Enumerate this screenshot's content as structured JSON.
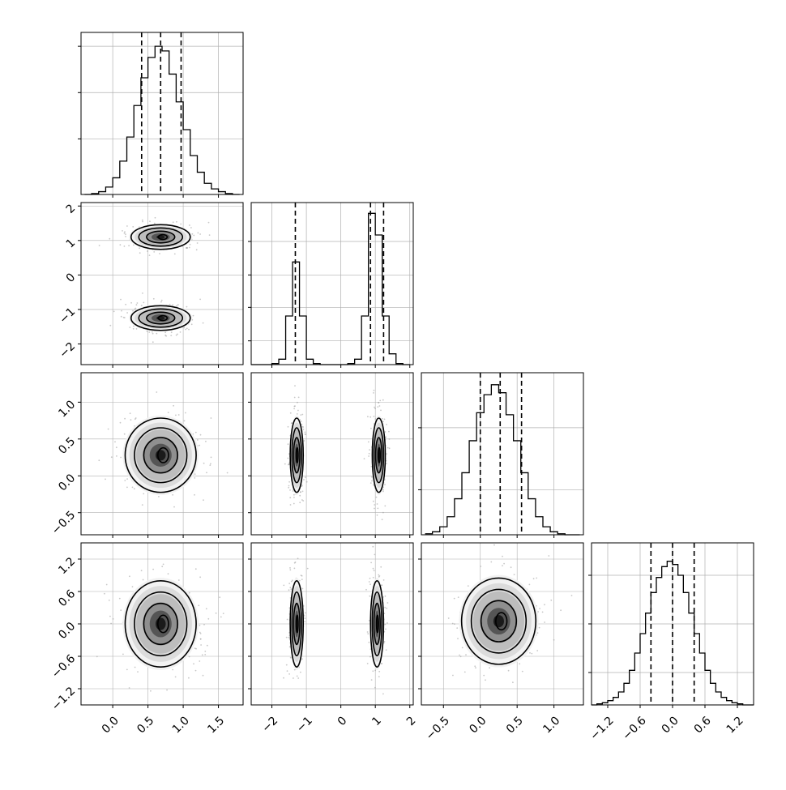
{
  "chart_data": {
    "type": "corner",
    "params": 4,
    "panels": {
      "diag": [
        {
          "index": 0,
          "type": "histogram",
          "bins": [
            -0.4,
            -0.3,
            -0.2,
            -0.1,
            0.0,
            0.1,
            0.2,
            0.3,
            0.4,
            0.5,
            0.6,
            0.7,
            0.8,
            0.9,
            1.0,
            1.1,
            1.2,
            1.3,
            1.4,
            1.5,
            1.6,
            1.7,
            1.8
          ],
          "counts": [
            0,
            1,
            3,
            8,
            18,
            36,
            62,
            96,
            126,
            148,
            160,
            155,
            130,
            100,
            70,
            42,
            24,
            12,
            6,
            3,
            1,
            0
          ],
          "quantiles": [
            0.41,
            0.68,
            0.97
          ],
          "xlim": [
            -0.45,
            1.85
          ],
          "ylim": [
            0,
            175
          ],
          "ygrid": [
            60,
            110,
            160
          ]
        },
        {
          "index": 1,
          "type": "histogram",
          "bins": [
            -2.6,
            -2.4,
            -2.2,
            -2.0,
            -1.8,
            -1.6,
            -1.4,
            -1.2,
            -1.0,
            -0.8,
            -0.6,
            -0.4,
            -0.2,
            0.0,
            0.2,
            0.4,
            0.6,
            0.8,
            1.0,
            1.2,
            1.4,
            1.6,
            1.8,
            2.0
          ],
          "counts": [
            0,
            0,
            0,
            1,
            5,
            45,
            95,
            45,
            5,
            1,
            0,
            0,
            0,
            0,
            1,
            5,
            45,
            140,
            120,
            45,
            10,
            1,
            0
          ],
          "quantiles": [
            -1.32,
            0.86,
            1.24
          ],
          "xlim": [
            -2.6,
            2.1
          ],
          "ylim": [
            0,
            150
          ],
          "ygrid": [
            22,
            53,
            83,
            114
          ]
        },
        {
          "index": 2,
          "type": "histogram",
          "bins": [
            -0.75,
            -0.65,
            -0.55,
            -0.45,
            -0.35,
            -0.25,
            -0.15,
            -0.05,
            0.05,
            0.15,
            0.25,
            0.35,
            0.45,
            0.55,
            0.65,
            0.75,
            0.85,
            0.95,
            1.05,
            1.15,
            1.25,
            1.35
          ],
          "counts": [
            1,
            3,
            8,
            18,
            36,
            62,
            94,
            122,
            140,
            150,
            142,
            120,
            94,
            62,
            36,
            18,
            8,
            3,
            1,
            0,
            0
          ],
          "quantiles": [
            0.0,
            0.27,
            0.56
          ],
          "xlim": [
            -0.8,
            1.4
          ],
          "ylim": [
            0,
            162
          ],
          "ygrid": [
            45,
            107
          ]
        },
        {
          "index": 3,
          "type": "histogram",
          "bins": [
            -1.5,
            -1.4,
            -1.3,
            -1.2,
            -1.1,
            -1.0,
            -0.9,
            -0.8,
            -0.7,
            -0.6,
            -0.5,
            -0.4,
            -0.3,
            -0.2,
            -0.1,
            0.0,
            0.1,
            0.2,
            0.3,
            0.4,
            0.5,
            0.6,
            0.7,
            0.8,
            0.9,
            1.0,
            1.1,
            1.2,
            1.3,
            1.4,
            1.5
          ],
          "counts": [
            0,
            1,
            2,
            4,
            7,
            12,
            20,
            32,
            48,
            66,
            85,
            104,
            118,
            128,
            133,
            130,
            120,
            104,
            85,
            66,
            48,
            32,
            20,
            12,
            7,
            4,
            2,
            1,
            0,
            0
          ],
          "quantiles": [
            -0.4,
            0.0,
            0.4
          ],
          "xlim": [
            -1.5,
            1.5
          ],
          "ylim": [
            0,
            150
          ],
          "ygrid": [
            30,
            75,
            120
          ]
        }
      ],
      "offdiag": [
        {
          "row": 1,
          "col": 0,
          "blobs": [
            {
              "cx": 0.68,
              "cy": 1.1,
              "sx": 0.2,
              "sy": 0.17
            },
            {
              "cx": 0.68,
              "cy": -1.25,
              "sx": 0.2,
              "sy": 0.17
            }
          ]
        },
        {
          "row": 2,
          "col": 0,
          "blobs": [
            {
              "cx": 0.68,
              "cy": 0.28,
              "sx": 0.24,
              "sy": 0.24
            }
          ]
        },
        {
          "row": 2,
          "col": 1,
          "blobs": [
            {
              "cx": -1.28,
              "cy": 0.28,
              "sx": 0.09,
              "sy": 0.24
            },
            {
              "cx": 1.1,
              "cy": 0.28,
              "sx": 0.09,
              "sy": 0.24
            }
          ]
        },
        {
          "row": 3,
          "col": 0,
          "blobs": [
            {
              "cx": 0.68,
              "cy": 0.0,
              "sx": 0.24,
              "sy": 0.38
            }
          ]
        },
        {
          "row": 3,
          "col": 1,
          "blobs": [
            {
              "cx": -1.28,
              "cy": 0.0,
              "sx": 0.09,
              "sy": 0.38
            },
            {
              "cx": 1.05,
              "cy": 0.0,
              "sx": 0.09,
              "sy": 0.38
            }
          ]
        },
        {
          "row": 3,
          "col": 2,
          "blobs": [
            {
              "cx": 0.25,
              "cy": 0.05,
              "sx": 0.24,
              "sy": 0.38
            }
          ]
        }
      ]
    },
    "axes": {
      "x": [
        {
          "ticks": [
            0.0,
            0.5,
            1.0,
            1.5
          ],
          "labels": [
            "0.0",
            "0.5",
            "1.0",
            "1.5"
          ],
          "lim": [
            -0.45,
            1.85
          ]
        },
        {
          "ticks": [
            -2,
            -1,
            0,
            1,
            2
          ],
          "labels": [
            "−2",
            "−1",
            "0",
            "1",
            "2"
          ],
          "lim": [
            -2.6,
            2.1
          ]
        },
        {
          "ticks": [
            -0.5,
            0.0,
            0.5,
            1.0
          ],
          "labels": [
            "−0.5",
            "0.0",
            "0.5",
            "1.0"
          ],
          "lim": [
            -0.8,
            1.4
          ]
        },
        {
          "ticks": [
            -1.2,
            -0.6,
            0.0,
            0.6,
            1.2
          ],
          "labels": [
            "−1.2",
            "−0.6",
            "0.0",
            "0.6",
            "1.2"
          ],
          "lim": [
            -1.5,
            1.5
          ]
        }
      ],
      "y": [
        {
          "ticks": [],
          "labels": [],
          "lim": [
            0,
            1
          ]
        },
        {
          "ticks": [
            2,
            1,
            0,
            -1,
            -2
          ],
          "labels": [
            "2",
            "1",
            "0",
            "−1",
            "−2"
          ],
          "lim": [
            -2.6,
            2.1
          ]
        },
        {
          "ticks": [
            1.0,
            0.5,
            0.0,
            -0.5
          ],
          "labels": [
            "1.0",
            "0.5",
            "0.0",
            "−0.5"
          ],
          "lim": [
            -0.8,
            1.4
          ]
        },
        {
          "ticks": [
            1.2,
            0.6,
            0.0,
            -0.6,
            -1.2
          ],
          "labels": [
            "1.2",
            "0.6",
            "0.0",
            "−0.6",
            "−1.2"
          ],
          "lim": [
            -1.5,
            1.5
          ]
        }
      ]
    },
    "colors": {
      "line": "#000000",
      "grid": "#b0b0b0",
      "points": "#9a9a9a"
    },
    "grid": true
  }
}
